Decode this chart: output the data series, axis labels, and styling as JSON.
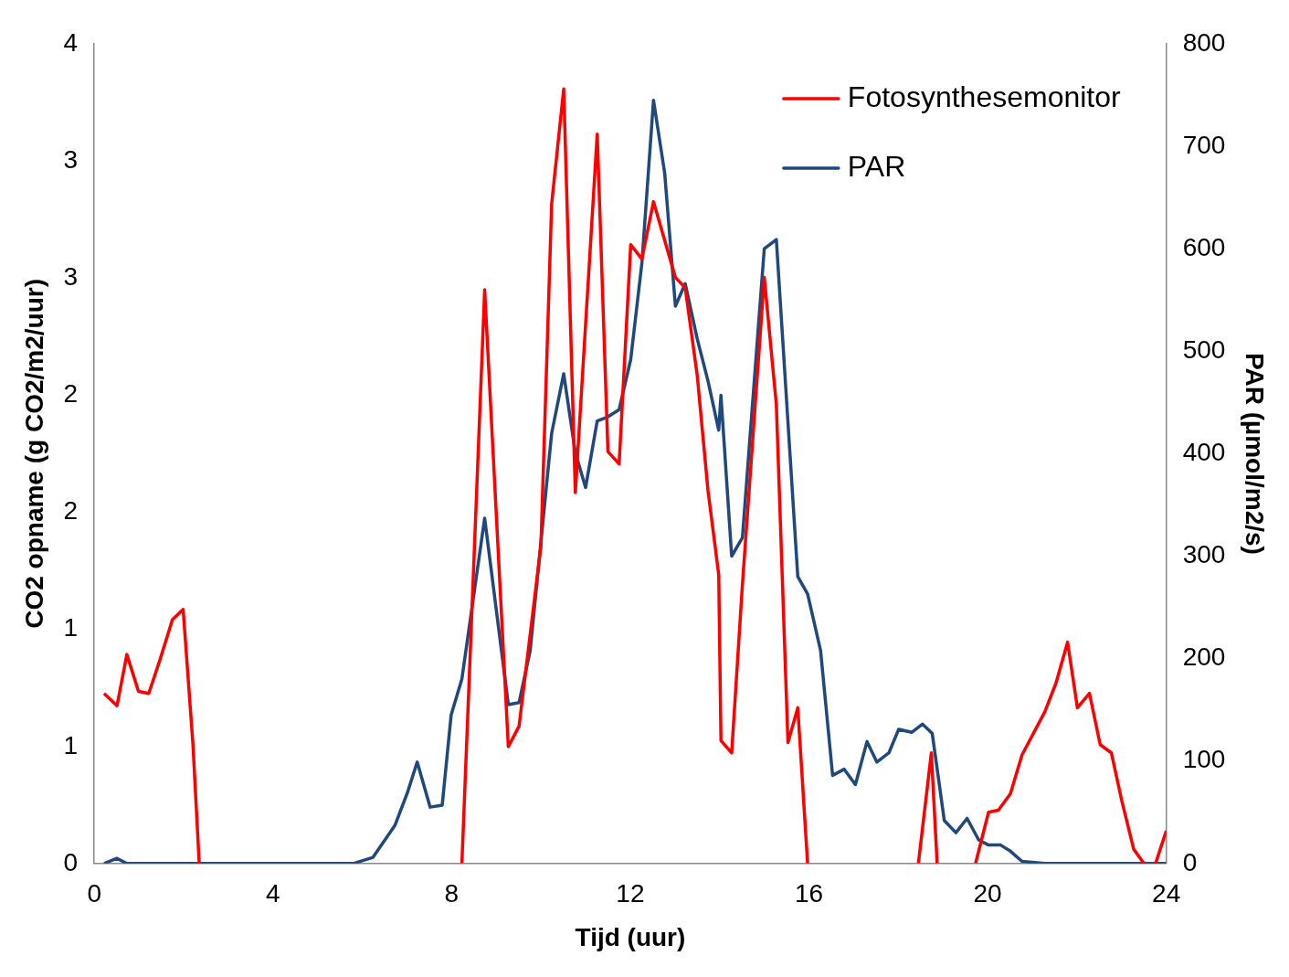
{
  "chart_data": {
    "type": "line",
    "xlabel": "Tijd (uur)",
    "ylabel": "CO2 opname (g CO2/m2/uur)",
    "y2label": "PAR (µmol/m2/s)",
    "xlim": [
      0,
      24
    ],
    "xticks": [
      0,
      4,
      8,
      12,
      16,
      20,
      24
    ],
    "ylim": [
      0,
      4
    ],
    "yticks": [
      0,
      {
        "value": 0.571,
        "label": "1"
      },
      {
        "value": 1.143,
        "label": "1"
      },
      {
        "value": 1.714,
        "label": "2"
      },
      {
        "value": 2.286,
        "label": "2"
      },
      {
        "value": 2.857,
        "label": "3"
      },
      {
        "value": 3.429,
        "label": "3"
      },
      4
    ],
    "y2lim": [
      0,
      800
    ],
    "y2ticks": [
      0,
      100,
      200,
      300,
      400,
      500,
      600,
      700,
      800
    ],
    "grid": false,
    "legend": "top right",
    "marker": "none",
    "line_style": "solid",
    "series": [
      {
        "name": "Fotosynthesemonitor",
        "color": "#ff0000",
        "x": [
          0.22,
          0.51,
          0.73,
          0.99,
          1.22,
          1.48,
          1.75,
          1.99,
          2.21,
          2.35,
          2.5,
          8.1,
          8.23,
          8.74,
          9.27,
          9.51,
          10.0,
          10.24,
          10.51,
          10.77,
          11.26,
          11.5,
          11.75,
          12.01,
          12.26,
          12.52,
          13.01,
          13.23,
          13.5,
          13.74,
          13.98,
          14.03,
          14.27,
          14.51,
          15.0,
          15.27,
          15.53,
          15.75,
          15.97,
          16.2,
          18.3,
          18.45,
          18.74,
          18.87,
          19.6,
          19.73,
          20.02,
          20.24,
          20.51,
          20.77,
          21.28,
          21.53,
          21.79,
          22.01,
          22.28,
          22.52,
          22.77,
          23.0,
          23.27,
          23.5,
          23.6,
          23.76,
          24.0
        ],
        "values": [
          0.83,
          0.77,
          1.02,
          0.84,
          0.83,
          1.0,
          1.19,
          1.24,
          0.58,
          0,
          null,
          null,
          0,
          2.8,
          0.57,
          0.67,
          1.55,
          3.22,
          3.78,
          1.81,
          3.56,
          2.01,
          1.95,
          3.02,
          2.95,
          3.23,
          2.86,
          2.81,
          2.38,
          1.82,
          1.41,
          0.6,
          0.54,
          1.36,
          2.86,
          2.24,
          0.59,
          0.76,
          0,
          null,
          null,
          0,
          0.54,
          0,
          null,
          0,
          0.25,
          0.26,
          0.34,
          0.53,
          0.74,
          0.88,
          1.08,
          0.76,
          0.83,
          0.58,
          0.54,
          0.31,
          0.07,
          0,
          null,
          0,
          0.16
        ]
      },
      {
        "name": "PAR",
        "color": "#1f497d",
        "axis": "y2",
        "x": [
          0.22,
          0.51,
          0.73,
          5.8,
          6.24,
          6.73,
          7.01,
          7.23,
          7.52,
          7.79,
          7.99,
          8.23,
          8.74,
          9.27,
          9.51,
          9.76,
          10.24,
          10.51,
          10.77,
          11.0,
          11.26,
          11.5,
          11.75,
          12.01,
          12.26,
          12.52,
          12.77,
          13.01,
          13.23,
          13.5,
          13.74,
          13.98,
          14.03,
          14.27,
          14.51,
          15.0,
          15.27,
          15.75,
          15.97,
          16.26,
          16.53,
          16.79,
          17.04,
          17.3,
          17.52,
          17.79,
          18.01,
          18.3,
          18.54,
          18.76,
          19.03,
          19.29,
          19.54,
          19.8,
          20.02,
          20.29,
          20.51,
          20.77,
          21.28,
          24.0
        ],
        "values": [
          0,
          5,
          0,
          0,
          6,
          37,
          69,
          99,
          55,
          57,
          145,
          180,
          337,
          155,
          157,
          208,
          420,
          478,
          401,
          367,
          432,
          436,
          443,
          492,
          586,
          745,
          674,
          544,
          566,
          512,
          471,
          423,
          457,
          300,
          318,
          600,
          609,
          280,
          263,
          208,
          86,
          92,
          77,
          119,
          99,
          108,
          131,
          128,
          136,
          127,
          42,
          30,
          44,
          23,
          18,
          18,
          12,
          2,
          0,
          0
        ]
      }
    ]
  }
}
